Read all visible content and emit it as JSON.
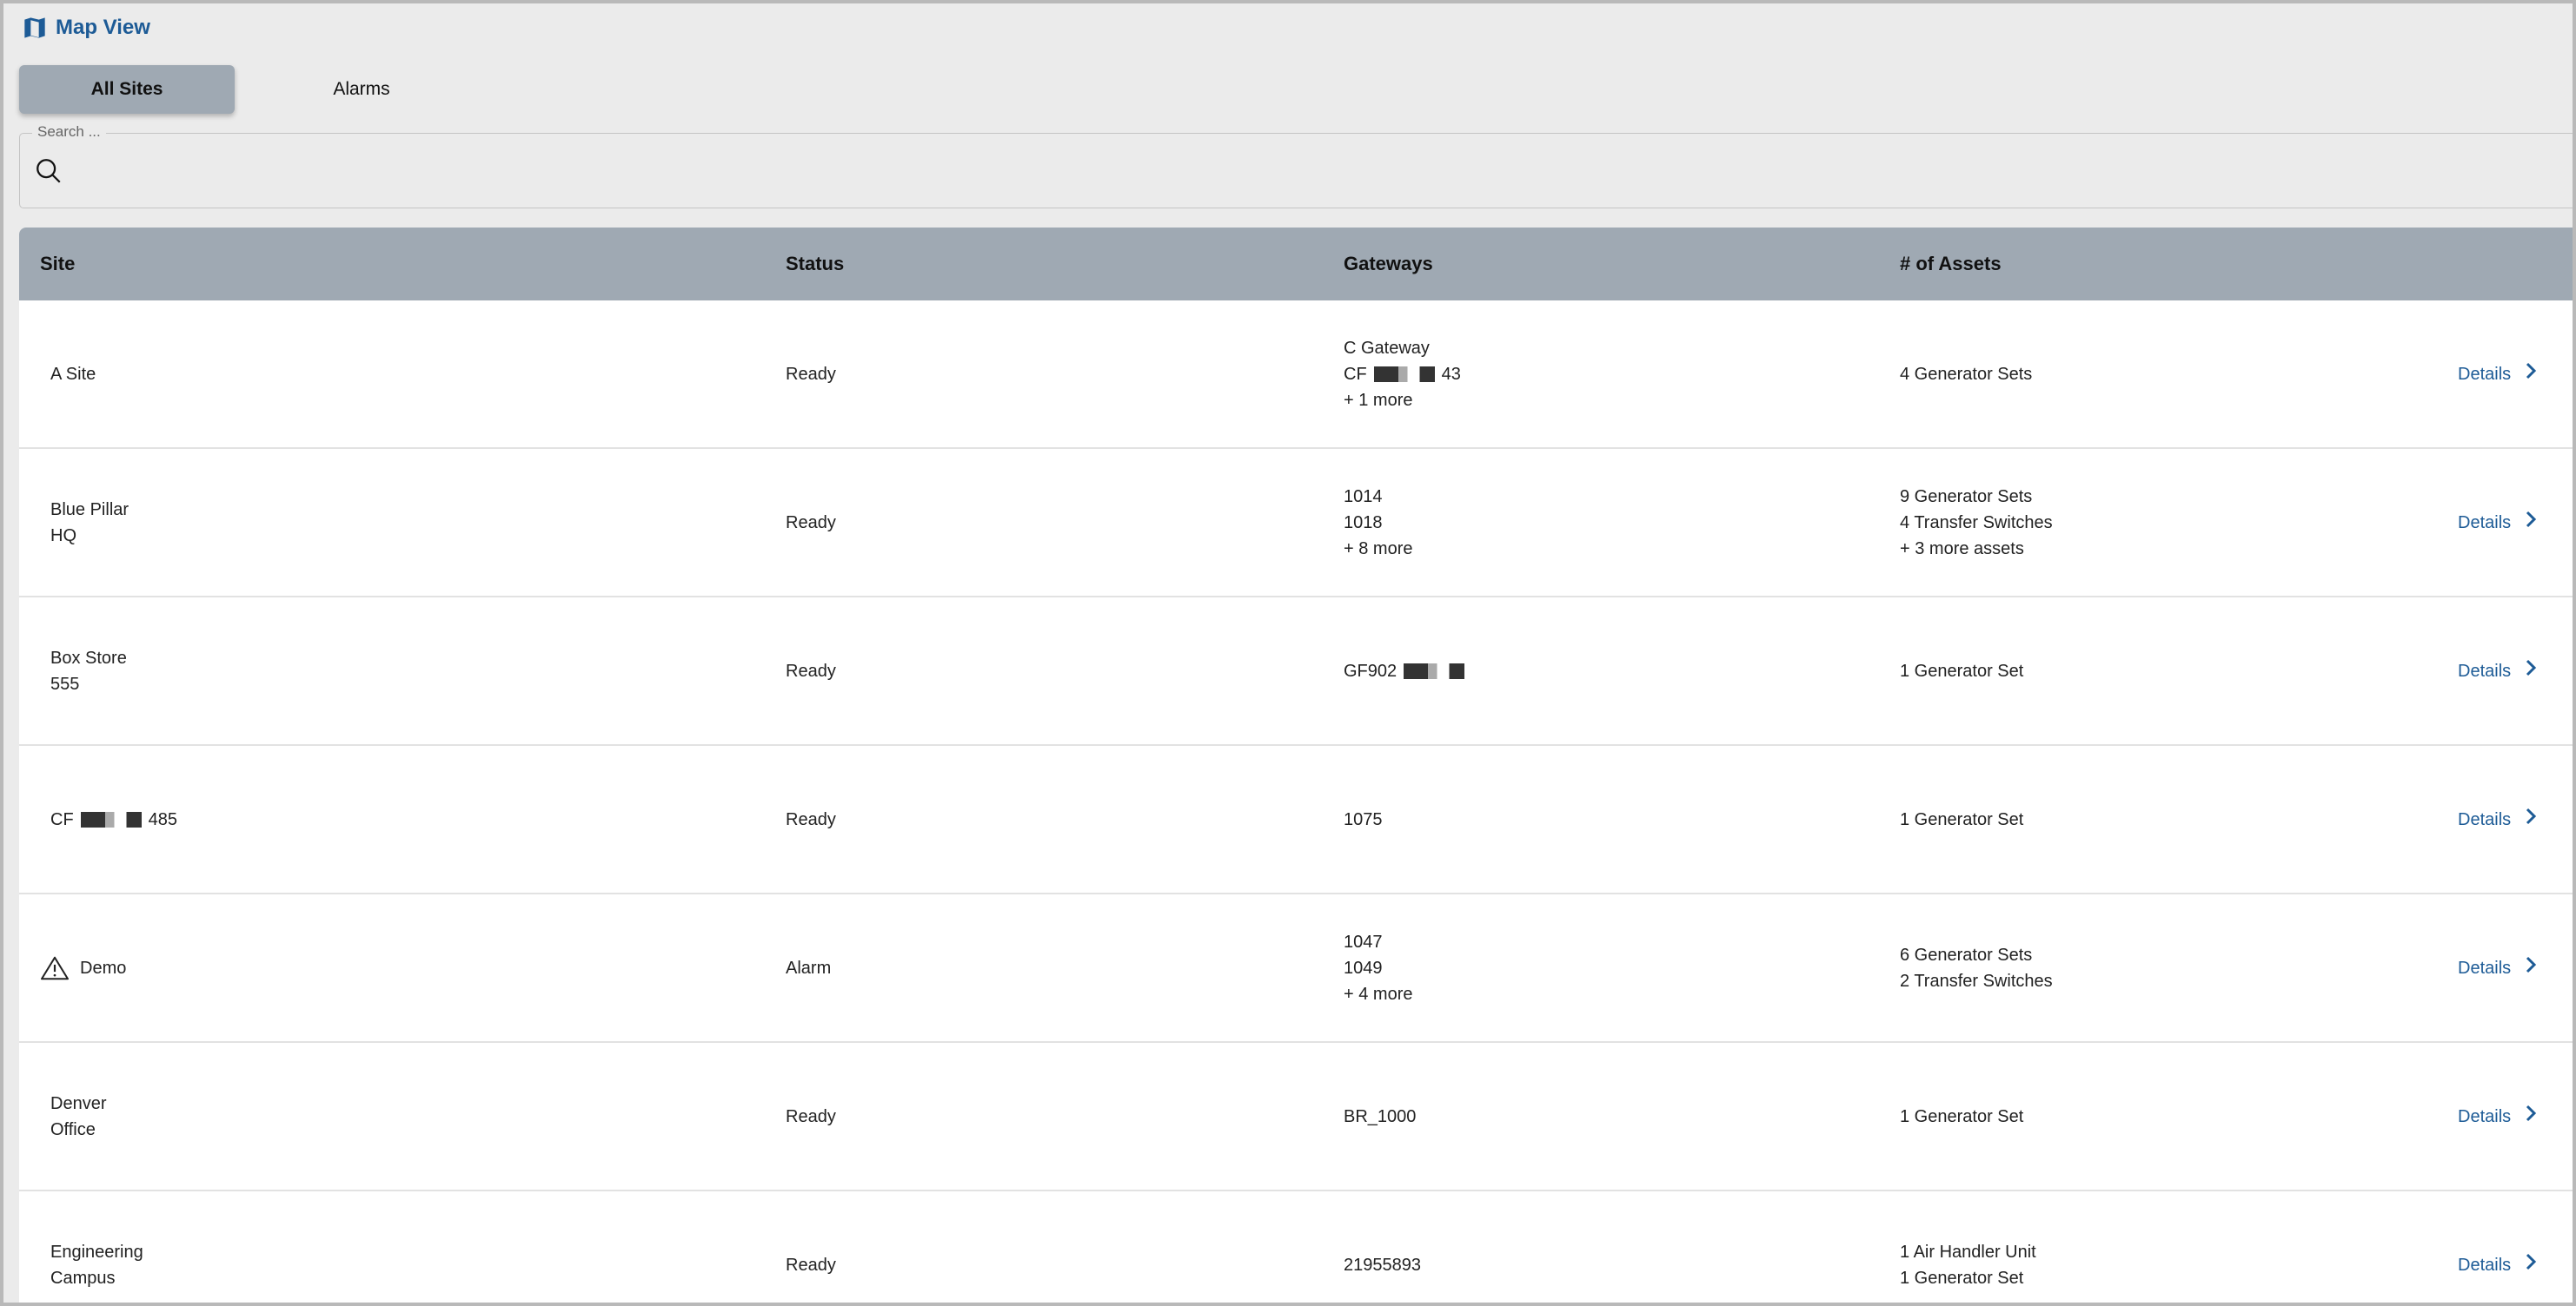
{
  "header": {
    "title": "Map View",
    "icon": "map-icon",
    "accent": "#1d5b96"
  },
  "tabs": [
    {
      "label": "All Sites",
      "active": true
    },
    {
      "label": "Alarms",
      "active": false
    }
  ],
  "search": {
    "label": "Search ...",
    "value": ""
  },
  "table": {
    "columns": [
      "Site",
      "Status",
      "Gateways",
      "# of Assets"
    ],
    "details_label": "Details",
    "rows": [
      {
        "site": [
          "A Site"
        ],
        "status": "Ready",
        "gateways": [
          "C Gateway",
          {
            "pre": "CF",
            "post": "43"
          },
          "+ 1 more"
        ],
        "assets": [
          "4 Generator Sets"
        ]
      },
      {
        "site": [
          "Blue Pillar",
          "HQ"
        ],
        "status": "Ready",
        "gateways": [
          "1014",
          "1018",
          "+ 8 more"
        ],
        "assets": [
          "9 Generator Sets",
          "4 Transfer Switches",
          "+ 3 more assets"
        ]
      },
      {
        "site": [
          "Box Store",
          "555"
        ],
        "status": "Ready",
        "gateways": [
          {
            "pre": "GF902",
            "post": ""
          }
        ],
        "assets": [
          "1 Generator Set"
        ]
      },
      {
        "site": [
          {
            "pre": "CF",
            "post": "485"
          }
        ],
        "status": "Ready",
        "gateways": [
          "1075"
        ],
        "assets": [
          "1 Generator Set"
        ]
      },
      {
        "site": [
          "Demo"
        ],
        "status": "Alarm",
        "alarm": true,
        "gateways": [
          "1047",
          "1049",
          "+ 4 more"
        ],
        "assets": [
          "6 Generator Sets",
          "2 Transfer Switches"
        ]
      },
      {
        "site": [
          "Denver",
          "Office"
        ],
        "status": "Ready",
        "gateways": [
          "BR_1000"
        ],
        "assets": [
          "1 Generator Set"
        ]
      },
      {
        "site": [
          "Engineering",
          "Campus"
        ],
        "status": "Ready",
        "gateways": [
          "21955893"
        ],
        "assets": [
          "1 Air Handler Unit",
          "1 Generator Set"
        ]
      }
    ]
  }
}
